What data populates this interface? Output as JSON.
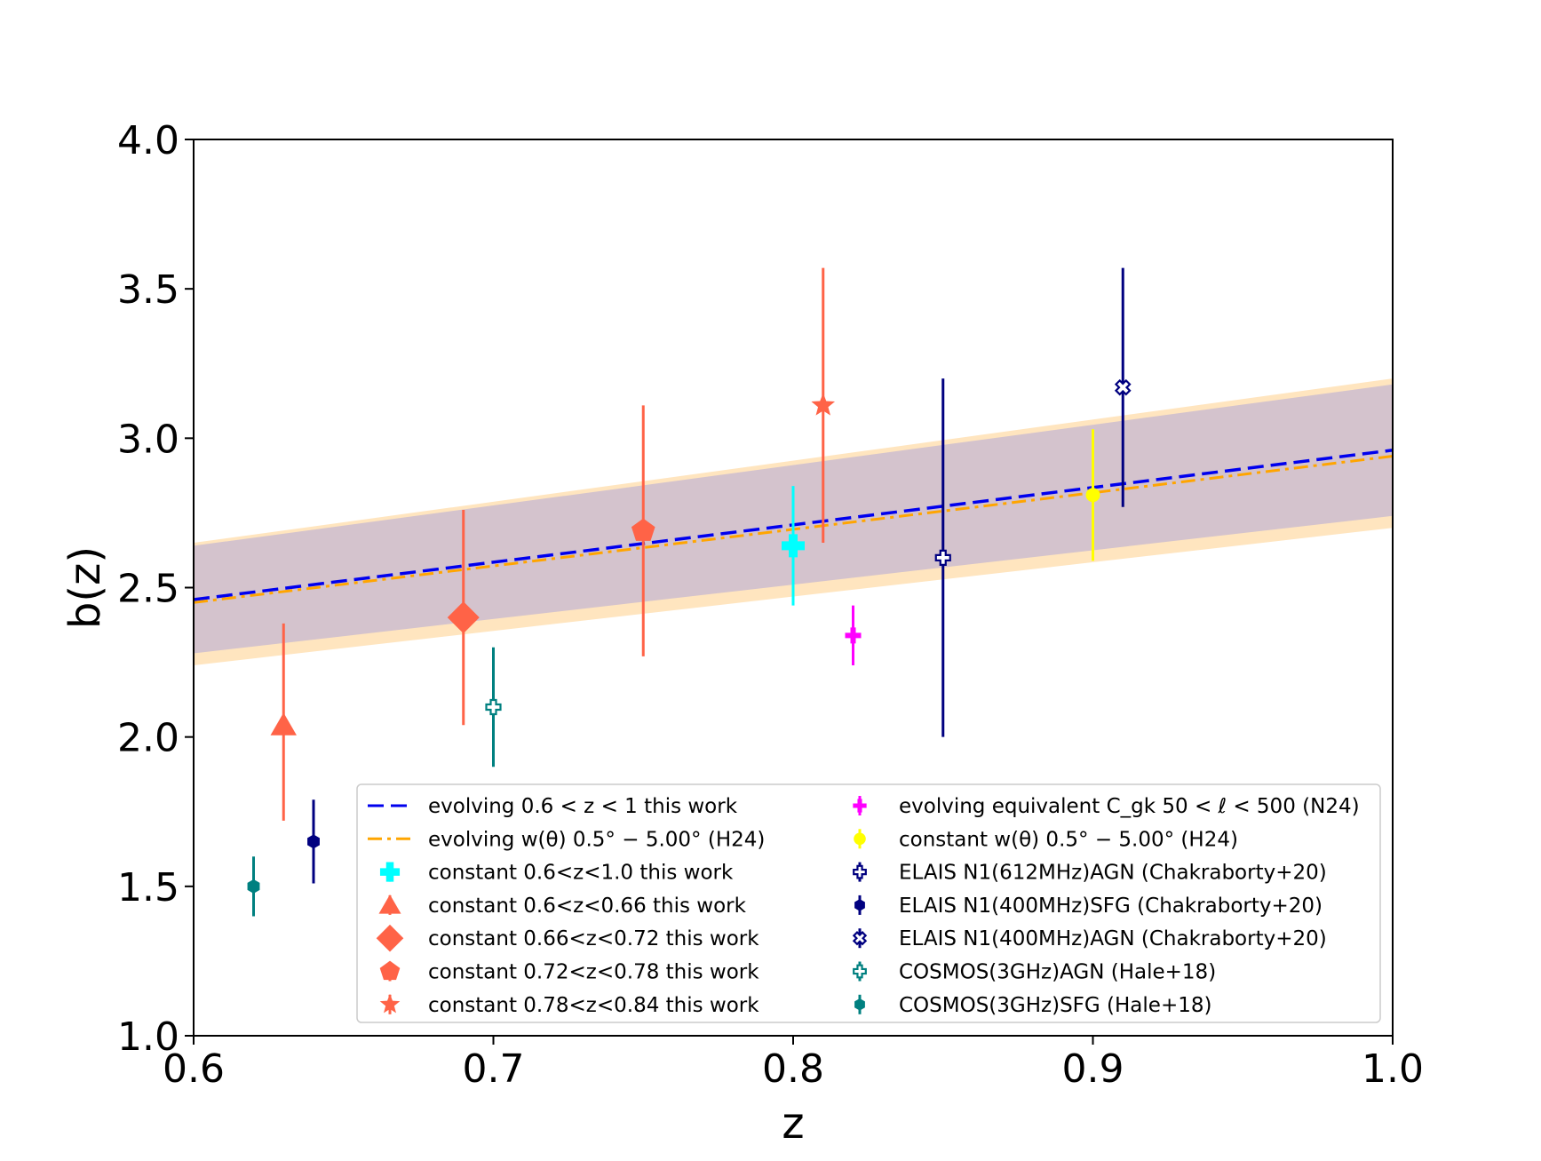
{
  "chart_data": {
    "type": "scatter",
    "title": "",
    "xlabel": "z",
    "ylabel": "b(z)",
    "xlim": [
      0.6,
      1.0
    ],
    "ylim": [
      1.0,
      4.0
    ],
    "xticks": [
      "0.6",
      "0.7",
      "0.8",
      "0.9",
      "1.0"
    ],
    "yticks": [
      "1.0",
      "1.5",
      "2.0",
      "2.5",
      "3.0",
      "3.5",
      "4.0"
    ],
    "grid": false,
    "legend_position": "lower-right",
    "bands": [
      {
        "name": "evolving w(θ) 0.5°−5.00° (H24) uncertainty",
        "color": "#ffe5bf",
        "x": [
          0.6,
          1.0
        ],
        "lower": [
          2.24,
          2.7
        ],
        "upper": [
          2.65,
          3.2
        ]
      },
      {
        "name": "evolving 0.6<z<1 this work uncertainty",
        "color": "#d4c3cd",
        "x": [
          0.6,
          1.0
        ],
        "lower": [
          2.28,
          2.74
        ],
        "upper": [
          2.64,
          3.18
        ]
      }
    ],
    "lines": [
      {
        "name": "evolving 0.6 < z < 1 this work",
        "color": "#0000ee",
        "dash": "dashed",
        "x": [
          0.6,
          1.0
        ],
        "y": [
          2.46,
          2.96
        ]
      },
      {
        "name": "evolving w(θ) 0.5° − 5.00° (H24)",
        "color": "#ffa500",
        "dash": "dashdot",
        "x": [
          0.6,
          1.0
        ],
        "y": [
          2.45,
          2.94
        ]
      }
    ],
    "series": [
      {
        "name": "constant 0.6<z<1.0 this work",
        "color": "#00ffff",
        "marker": "plus-thick",
        "x": 0.8,
        "y": 2.64,
        "yerr_low": 2.44,
        "yerr_high": 2.84
      },
      {
        "name": "constant 0.6<z<0.66 this work",
        "color": "#ff6347",
        "marker": "triangle",
        "x": 0.63,
        "y": 2.04,
        "yerr_low": 1.72,
        "yerr_high": 2.38
      },
      {
        "name": "constant 0.66<z<0.72 this work",
        "color": "#ff6347",
        "marker": "diamond",
        "x": 0.69,
        "y": 2.4,
        "yerr_low": 2.04,
        "yerr_high": 2.76
      },
      {
        "name": "constant 0.72<z<0.78 this work",
        "color": "#ff6347",
        "marker": "pentagon",
        "x": 0.75,
        "y": 2.69,
        "yerr_low": 2.27,
        "yerr_high": 3.11
      },
      {
        "name": "constant 0.78<z<0.84 this work",
        "color": "#ff6347",
        "marker": "star",
        "x": 0.81,
        "y": 3.11,
        "yerr_low": 2.65,
        "yerr_high": 3.57
      },
      {
        "name": "evolving equivalent C_gk 50 < ℓ < 500 (N24)",
        "color": "#ff00ff",
        "marker": "plus",
        "x": 0.82,
        "y": 2.34,
        "yerr_low": 2.24,
        "yerr_high": 2.44
      },
      {
        "name": "constant w(θ) 0.5° − 5.00° (H24)",
        "color": "#ffff00",
        "marker": "circle",
        "x": 0.9,
        "y": 2.81,
        "yerr_low": 2.59,
        "yerr_high": 3.03
      },
      {
        "name": "ELAIS N1(612MHz)AGN (Chakraborty+20)",
        "color": "#000080",
        "marker": "plus-open",
        "x": 0.85,
        "y": 2.6,
        "yerr_low": 2.0,
        "yerr_high": 3.2
      },
      {
        "name": "ELAIS N1(400MHz)SFG (Chakraborty+20)",
        "color": "#000080",
        "marker": "hexagon",
        "x": 0.64,
        "y": 1.65,
        "yerr_low": 1.51,
        "yerr_high": 1.79
      },
      {
        "name": "ELAIS N1(400MHz)AGN (Chakraborty+20)",
        "color": "#000080",
        "marker": "x-open",
        "x": 0.91,
        "y": 3.17,
        "yerr_low": 2.77,
        "yerr_high": 3.57
      },
      {
        "name": "COSMOS(3GHz)AGN (Hale+18)",
        "color": "#008080",
        "marker": "plus-open",
        "x": 0.7,
        "y": 2.1,
        "yerr_low": 1.9,
        "yerr_high": 2.3
      },
      {
        "name": "COSMOS(3GHz)SFG (Hale+18)",
        "color": "#008080",
        "marker": "hexagon",
        "x": 0.62,
        "y": 1.5,
        "yerr_low": 1.4,
        "yerr_high": 1.6
      }
    ],
    "legend": {
      "col1": [
        {
          "kind": "line",
          "ref": "line:0",
          "label": "evolving 0.6 < z < 1 this work"
        },
        {
          "kind": "line",
          "ref": "line:1",
          "label": "evolving w(θ) 0.5° − 5.00° (H24)"
        },
        {
          "kind": "series",
          "ref": "series:0",
          "label": "constant 0.6<z<1.0 this work"
        },
        {
          "kind": "series",
          "ref": "series:1",
          "label": "constant 0.6<z<0.66 this work"
        },
        {
          "kind": "series",
          "ref": "series:2",
          "label": "constant 0.66<z<0.72 this work"
        },
        {
          "kind": "series",
          "ref": "series:3",
          "label": "constant 0.72<z<0.78 this work"
        },
        {
          "kind": "series",
          "ref": "series:4",
          "label": "constant 0.78<z<0.84 this work"
        }
      ],
      "col2": [
        {
          "kind": "series",
          "ref": "series:5",
          "label": "evolving equivalent C_gk 50 < ℓ < 500 (N24)"
        },
        {
          "kind": "series",
          "ref": "series:6",
          "label": "constant w(θ) 0.5° − 5.00° (H24)"
        },
        {
          "kind": "series",
          "ref": "series:7",
          "label": "ELAIS N1(612MHz)AGN (Chakraborty+20)"
        },
        {
          "kind": "series",
          "ref": "series:8",
          "label": "ELAIS N1(400MHz)SFG (Chakraborty+20)"
        },
        {
          "kind": "series",
          "ref": "series:9",
          "label": "ELAIS N1(400MHz)AGN (Chakraborty+20)"
        },
        {
          "kind": "series",
          "ref": "series:10",
          "label": "COSMOS(3GHz)AGN (Hale+18)"
        },
        {
          "kind": "series",
          "ref": "series:11",
          "label": "COSMOS(3GHz)SFG (Hale+18)"
        }
      ]
    }
  }
}
